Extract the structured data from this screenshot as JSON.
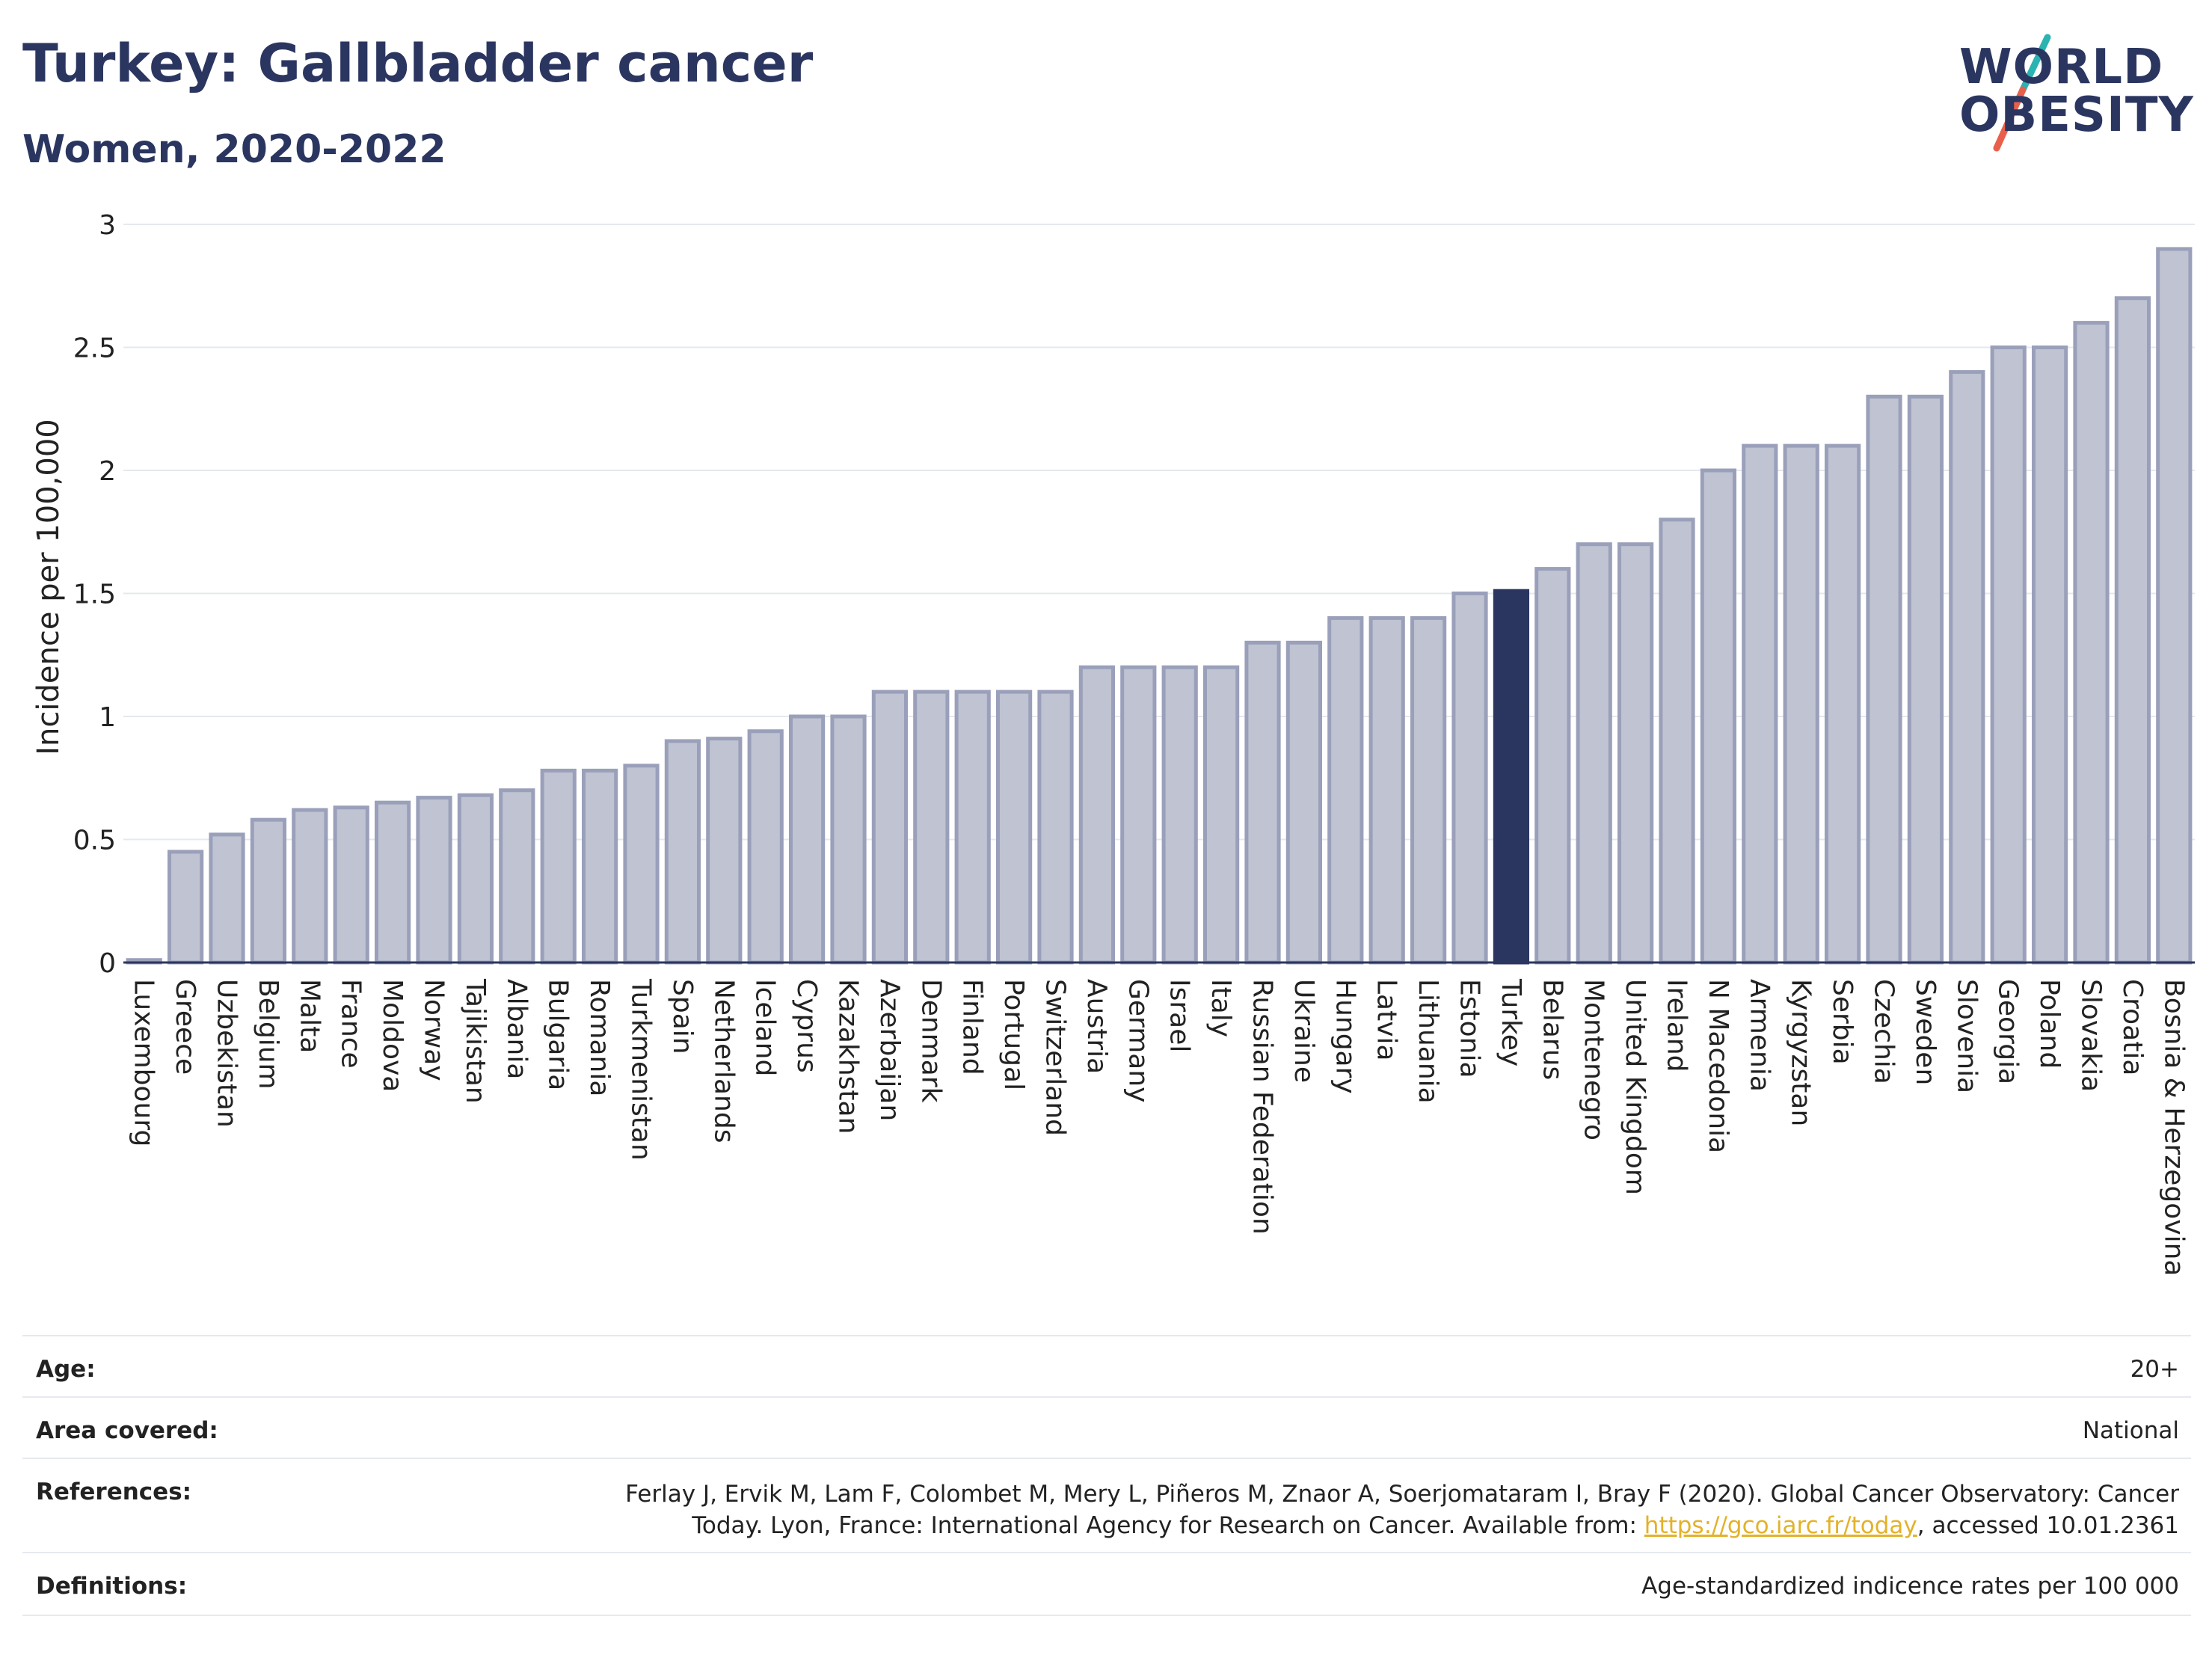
{
  "header": {
    "title": "Turkey: Gallbladder cancer",
    "subtitle": "Women, 2020-2022"
  },
  "logo": {
    "line1": "WORLD",
    "line2": "OBESITY",
    "colors": {
      "text": "#2b3660",
      "slash_top": "#2ab3b1",
      "slash_bottom": "#e8604c"
    }
  },
  "colors": {
    "bar_fill": "#bfc3d2",
    "bar_stroke": "#9aa0ba",
    "highlight_fill": "#2b3660",
    "grid": "#e6e8ee",
    "axis_text": "#222222"
  },
  "chart_data": {
    "type": "bar",
    "ylabel": "Incidence per 100,000",
    "ylim": [
      0,
      3
    ],
    "yticks": [
      0,
      0.5,
      1,
      1.5,
      2,
      2.5,
      3
    ],
    "ytick_labels": [
      "0",
      "0.5",
      "1",
      "1.5",
      "2",
      "2.5",
      "3"
    ],
    "grid": true,
    "highlight": "Turkey",
    "categories": [
      "Luxembourg",
      "Greece",
      "Uzbekistan",
      "Belgium",
      "Malta",
      "France",
      "Moldova",
      "Norway",
      "Tajikistan",
      "Albania",
      "Bulgaria",
      "Romania",
      "Turkmenistan",
      "Spain",
      "Netherlands",
      "Iceland",
      "Cyprus",
      "Kazakhstan",
      "Azerbaijan",
      "Denmark",
      "Finland",
      "Portugal",
      "Switzerland",
      "Austria",
      "Germany",
      "Israel",
      "Italy",
      "Russian Federation",
      "Ukraine",
      "Hungary",
      "Latvia",
      "Lithuania",
      "Estonia",
      "Turkey",
      "Belarus",
      "Montenegro",
      "United Kingdom",
      "Ireland",
      "N Macedonia",
      "Armenia",
      "Kyrgyzstan",
      "Serbia",
      "Czechia",
      "Sweden",
      "Slovenia",
      "Georgia",
      "Poland",
      "Slovakia",
      "Croatia",
      "Bosnia & Herzegovina"
    ],
    "values": [
      0.01,
      0.45,
      0.52,
      0.58,
      0.62,
      0.63,
      0.65,
      0.67,
      0.68,
      0.7,
      0.78,
      0.78,
      0.8,
      0.9,
      0.91,
      0.94,
      1.0,
      1.0,
      1.1,
      1.1,
      1.1,
      1.1,
      1.1,
      1.2,
      1.2,
      1.2,
      1.2,
      1.3,
      1.3,
      1.4,
      1.4,
      1.4,
      1.5,
      1.51,
      1.6,
      1.7,
      1.7,
      1.8,
      2.0,
      2.1,
      2.1,
      2.1,
      2.3,
      2.3,
      2.4,
      2.5,
      2.5,
      2.6,
      2.7,
      2.9
    ]
  },
  "info": {
    "age_label": "Age:",
    "age_value": "20+",
    "area_label": "Area covered:",
    "area_value": "National",
    "references_label": "References:",
    "references_line1": "Ferlay J, Ervik M, Lam F, Colombet M, Mery L, Piñeros M, Znaor A, Soerjomataram I, Bray F (2020). Global Cancer Observatory: Cancer",
    "references_line2_pre": "Today. Lyon, France: International Agency for Research on Cancer. Available from: ",
    "references_link": "https://gco.iarc.fr/today",
    "references_line2_post": ", accessed 10.01.2361",
    "definitions_label": "Definitions:",
    "definitions_value": "Age-standardized indicence rates per 100 000"
  }
}
